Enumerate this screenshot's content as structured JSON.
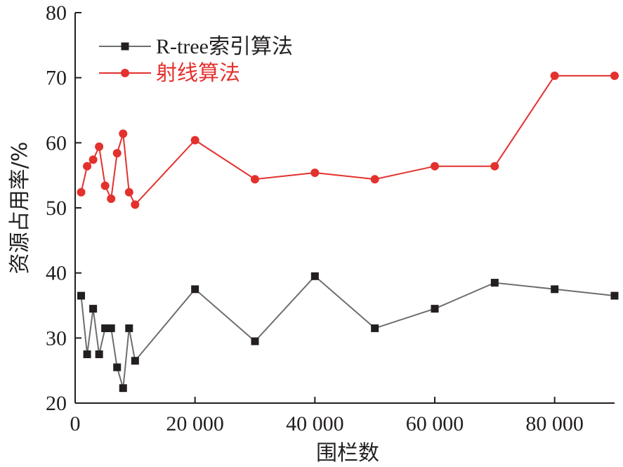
{
  "chart_data": {
    "type": "line",
    "title": "",
    "xlabel": "围栏数",
    "ylabel": "资源占用率/%",
    "xlim": [
      0,
      90000
    ],
    "ylim": [
      20,
      80
    ],
    "x_ticks": [
      {
        "value": 0,
        "label": "0"
      },
      {
        "value": 20000,
        "label": "20 000"
      },
      {
        "value": 40000,
        "label": "40 000"
      },
      {
        "value": 60000,
        "label": "60 000"
      },
      {
        "value": 80000,
        "label": "80 000"
      }
    ],
    "y_ticks": [
      {
        "value": 20,
        "label": "20"
      },
      {
        "value": 30,
        "label": "30"
      },
      {
        "value": 40,
        "label": "40"
      },
      {
        "value": 50,
        "label": "50"
      },
      {
        "value": 60,
        "label": "60"
      },
      {
        "value": 70,
        "label": "70"
      },
      {
        "value": 80,
        "label": "80"
      }
    ],
    "grid": false,
    "legend_position": "top-left",
    "x": [
      1000,
      2000,
      3000,
      4000,
      5000,
      6000,
      7000,
      8000,
      9000,
      10000,
      20000,
      30000,
      40000,
      50000,
      60000,
      70000,
      80000,
      90000
    ],
    "series": [
      {
        "name": "R-tree索引算法",
        "color": "#6d6e70",
        "marker": "square",
        "values": [
          36.5,
          27.5,
          34.5,
          27.5,
          31.5,
          31.5,
          25.5,
          22.3,
          31.5,
          26.5,
          37.5,
          29.5,
          39.5,
          31.5,
          34.5,
          38.5,
          37.5,
          36.5
        ]
      },
      {
        "name": "射线算法",
        "color": "#e3312d",
        "marker": "circle",
        "values": [
          52.4,
          56.4,
          57.4,
          59.4,
          53.4,
          51.4,
          58.4,
          61.4,
          52.4,
          50.5,
          60.4,
          54.4,
          55.4,
          54.4,
          56.4,
          56.4,
          70.3,
          70.3
        ]
      }
    ]
  }
}
